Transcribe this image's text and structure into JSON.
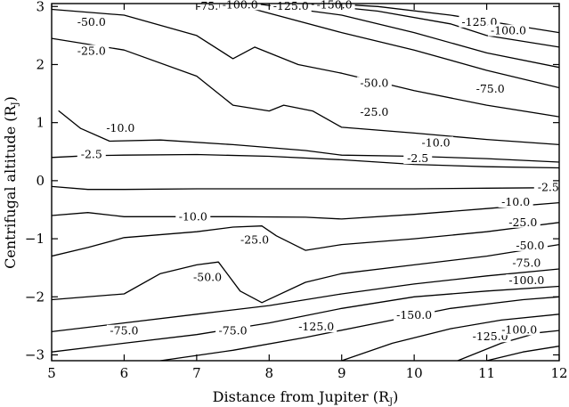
{
  "chart_data": {
    "type": "contour",
    "title": "",
    "xlabel": "Distance from Jupiter (R",
    "xlabel_sub": "J",
    "xlabel_tail": ")",
    "ylabel": "Centrifugal altitude (R",
    "ylabel_sub": "J",
    "ylabel_tail": ")",
    "xlim": [
      5,
      12
    ],
    "ylim": [
      -3.1,
      3.05
    ],
    "x_ticks": [
      "5",
      "6",
      "7",
      "8",
      "9",
      "10",
      "11",
      "12"
    ],
    "y_ticks": [
      "3",
      "2",
      "1",
      "0",
      "−1",
      "−2",
      "−3"
    ],
    "grid": false,
    "legend": "none",
    "contour_levels": [
      "-2.5",
      "-10.0",
      "-25.0",
      "-50.0",
      "-75.0",
      "-100.0",
      "-125.0",
      "-150.0"
    ],
    "contours": [
      {
        "level": "-2.5",
        "points": [
          [
            5.0,
            0.4
          ],
          [
            5.5,
            0.43
          ],
          [
            6.0,
            0.44
          ],
          [
            7.0,
            0.45
          ],
          [
            8.0,
            0.42
          ],
          [
            9.0,
            0.36
          ],
          [
            10.0,
            0.28
          ],
          [
            11.0,
            0.24
          ],
          [
            12.0,
            0.22
          ]
        ]
      },
      {
        "level": "-2.5",
        "points": [
          [
            5.0,
            -0.1
          ],
          [
            5.5,
            -0.15
          ],
          [
            6.0,
            -0.15
          ],
          [
            7.0,
            -0.14
          ],
          [
            8.0,
            -0.14
          ],
          [
            9.0,
            -0.14
          ],
          [
            10.0,
            -0.14
          ],
          [
            11.0,
            -0.13
          ],
          [
            12.0,
            -0.12
          ]
        ]
      },
      {
        "level": "-10.0",
        "points": [
          [
            5.1,
            1.2
          ],
          [
            5.4,
            0.9
          ],
          [
            5.8,
            0.68
          ],
          [
            6.5,
            0.7
          ],
          [
            7.5,
            0.62
          ],
          [
            8.5,
            0.52
          ],
          [
            9.0,
            0.44
          ],
          [
            10.0,
            0.42
          ],
          [
            11.0,
            0.38
          ],
          [
            12.0,
            0.32
          ]
        ]
      },
      {
        "level": "-10.0",
        "points": [
          [
            5.0,
            -0.6
          ],
          [
            5.5,
            -0.55
          ],
          [
            6.0,
            -0.62
          ],
          [
            6.5,
            -0.62
          ],
          [
            7.5,
            -0.62
          ],
          [
            8.5,
            -0.63
          ],
          [
            9.0,
            -0.66
          ],
          [
            10.0,
            -0.58
          ],
          [
            11.0,
            -0.48
          ],
          [
            12.0,
            -0.38
          ]
        ]
      },
      {
        "level": "-25.0",
        "points": [
          [
            5.0,
            2.45
          ],
          [
            6.0,
            2.25
          ],
          [
            7.0,
            1.8
          ],
          [
            7.5,
            1.3
          ],
          [
            8.0,
            1.2
          ],
          [
            8.2,
            1.3
          ],
          [
            8.6,
            1.2
          ],
          [
            9.0,
            0.92
          ],
          [
            10.0,
            0.82
          ],
          [
            11.0,
            0.71
          ],
          [
            12.0,
            0.62
          ]
        ]
      },
      {
        "level": "-25.0",
        "points": [
          [
            5.0,
            -1.3
          ],
          [
            5.5,
            -1.15
          ],
          [
            6.0,
            -0.98
          ],
          [
            7.0,
            -0.88
          ],
          [
            7.5,
            -0.8
          ],
          [
            7.9,
            -0.78
          ],
          [
            8.1,
            -0.95
          ],
          [
            8.5,
            -1.2
          ],
          [
            9.0,
            -1.1
          ],
          [
            10.0,
            -1.0
          ],
          [
            11.0,
            -0.88
          ],
          [
            12.0,
            -0.72
          ]
        ]
      },
      {
        "level": "-50.0",
        "points": [
          [
            5.0,
            2.95
          ],
          [
            6.0,
            2.85
          ],
          [
            7.0,
            2.5
          ],
          [
            7.5,
            2.1
          ],
          [
            7.8,
            2.3
          ],
          [
            8.4,
            2.0
          ],
          [
            9.0,
            1.85
          ],
          [
            10.0,
            1.55
          ],
          [
            11.0,
            1.3
          ],
          [
            12.0,
            1.1
          ]
        ]
      },
      {
        "level": "-50.0",
        "points": [
          [
            5.0,
            -2.05
          ],
          [
            6.0,
            -1.95
          ],
          [
            6.5,
            -1.6
          ],
          [
            7.0,
            -1.45
          ],
          [
            7.3,
            -1.4
          ],
          [
            7.6,
            -1.9
          ],
          [
            7.9,
            -2.1
          ],
          [
            8.5,
            -1.75
          ],
          [
            9.0,
            -1.6
          ],
          [
            10.0,
            -1.45
          ],
          [
            11.0,
            -1.3
          ],
          [
            12.0,
            -1.1
          ]
        ]
      },
      {
        "level": "-75.0",
        "points": [
          [
            7.5,
            3.05
          ],
          [
            9.0,
            2.55
          ],
          [
            10.0,
            2.25
          ],
          [
            11.0,
            1.9
          ],
          [
            12.0,
            1.6
          ]
        ]
      },
      {
        "level": "-75.0",
        "points": [
          [
            5.0,
            -2.6
          ],
          [
            6.0,
            -2.45
          ],
          [
            7.0,
            -2.3
          ],
          [
            8.0,
            -2.15
          ],
          [
            9.0,
            -1.95
          ],
          [
            10.0,
            -1.78
          ],
          [
            11.0,
            -1.64
          ],
          [
            12.0,
            -1.52
          ]
        ]
      },
      {
        "level": "-100.0",
        "points": [
          [
            7.8,
            3.05
          ],
          [
            9.0,
            2.85
          ],
          [
            10.0,
            2.55
          ],
          [
            11.0,
            2.2
          ],
          [
            12.0,
            1.95
          ]
        ]
      },
      {
        "level": "-100.0",
        "points": [
          [
            5.0,
            -2.95
          ],
          [
            6.0,
            -2.8
          ],
          [
            7.0,
            -2.65
          ],
          [
            8.0,
            -2.45
          ],
          [
            9.0,
            -2.2
          ],
          [
            10.0,
            -2.0
          ],
          [
            11.0,
            -1.9
          ],
          [
            12.0,
            -1.82
          ]
        ]
      },
      {
        "level": "-125.0",
        "points": [
          [
            8.5,
            3.05
          ],
          [
            9.5,
            2.92
          ],
          [
            10.5,
            2.7
          ],
          [
            11.0,
            2.5
          ],
          [
            12.0,
            2.3
          ]
        ]
      },
      {
        "level": "-125.0",
        "points": [
          [
            6.5,
            -3.1
          ],
          [
            7.5,
            -2.92
          ],
          [
            8.5,
            -2.7
          ],
          [
            9.5,
            -2.45
          ],
          [
            10.5,
            -2.2
          ],
          [
            11.5,
            -2.05
          ],
          [
            12.0,
            -2.0
          ]
        ]
      },
      {
        "level": "-150.0",
        "points": [
          [
            8.8,
            3.05
          ],
          [
            9.5,
            3.0
          ],
          [
            10.5,
            2.85
          ],
          [
            11.5,
            2.65
          ],
          [
            12.0,
            2.55
          ]
        ]
      },
      {
        "level": "-150.0",
        "points": [
          [
            9.0,
            -3.1
          ],
          [
            9.7,
            -2.8
          ],
          [
            10.5,
            -2.55
          ],
          [
            11.2,
            -2.4
          ],
          [
            12.0,
            -2.3
          ]
        ]
      },
      {
        "level": "-125.0",
        "points": [
          [
            10.6,
            -3.1
          ],
          [
            11.2,
            -2.8
          ],
          [
            11.7,
            -2.62
          ],
          [
            12.0,
            -2.58
          ]
        ]
      },
      {
        "level": "-100.0",
        "points": [
          [
            11.0,
            -3.1
          ],
          [
            11.5,
            -2.95
          ],
          [
            12.0,
            -2.85
          ]
        ]
      }
    ],
    "contour_labels": [
      {
        "text": "-75.0",
        "x": 7.2,
        "y": 2.97
      },
      {
        "text": "-100.0",
        "x": 7.6,
        "y": 3.0
      },
      {
        "text": "-125.0",
        "x": 8.3,
        "y": 2.97
      },
      {
        "text": "-150.0",
        "x": 8.9,
        "y": 3.0
      },
      {
        "text": "-125.0",
        "x": 10.9,
        "y": 2.7
      },
      {
        "text": "-100.0",
        "x": 11.3,
        "y": 2.55
      },
      {
        "text": "-50.0",
        "x": 5.55,
        "y": 2.7
      },
      {
        "text": "-25.0",
        "x": 5.55,
        "y": 2.2
      },
      {
        "text": "-50.0",
        "x": 9.45,
        "y": 1.65
      },
      {
        "text": "-75.0",
        "x": 11.05,
        "y": 1.55
      },
      {
        "text": "-25.0",
        "x": 9.45,
        "y": 1.15
      },
      {
        "text": "-10.0",
        "x": 5.95,
        "y": 0.87
      },
      {
        "text": "-10.0",
        "x": 10.3,
        "y": 0.62
      },
      {
        "text": "-2.5",
        "x": 5.55,
        "y": 0.42
      },
      {
        "text": "-2.5",
        "x": 10.05,
        "y": 0.35
      },
      {
        "text": "-2.5",
        "x": 11.85,
        "y": -0.15
      },
      {
        "text": "-10.0",
        "x": 11.4,
        "y": -0.4
      },
      {
        "text": "-10.0",
        "x": 6.95,
        "y": -0.65
      },
      {
        "text": "-25.0",
        "x": 11.5,
        "y": -0.75
      },
      {
        "text": "-25.0",
        "x": 7.8,
        "y": -1.05
      },
      {
        "text": "-50.0",
        "x": 11.6,
        "y": -1.15
      },
      {
        "text": "-75.0",
        "x": 11.55,
        "y": -1.45
      },
      {
        "text": "-100.0",
        "x": 11.55,
        "y": -1.75
      },
      {
        "text": "-50.0",
        "x": 7.15,
        "y": -1.7
      },
      {
        "text": "-150.0",
        "x": 10.0,
        "y": -2.35
      },
      {
        "text": "-75.0",
        "x": 6.0,
        "y": -2.62
      },
      {
        "text": "-75.0",
        "x": 7.5,
        "y": -2.62
      },
      {
        "text": "-125.0",
        "x": 8.65,
        "y": -2.55
      },
      {
        "text": "-125.0",
        "x": 11.05,
        "y": -2.72
      },
      {
        "text": "-100.0",
        "x": 11.45,
        "y": -2.6
      }
    ]
  }
}
